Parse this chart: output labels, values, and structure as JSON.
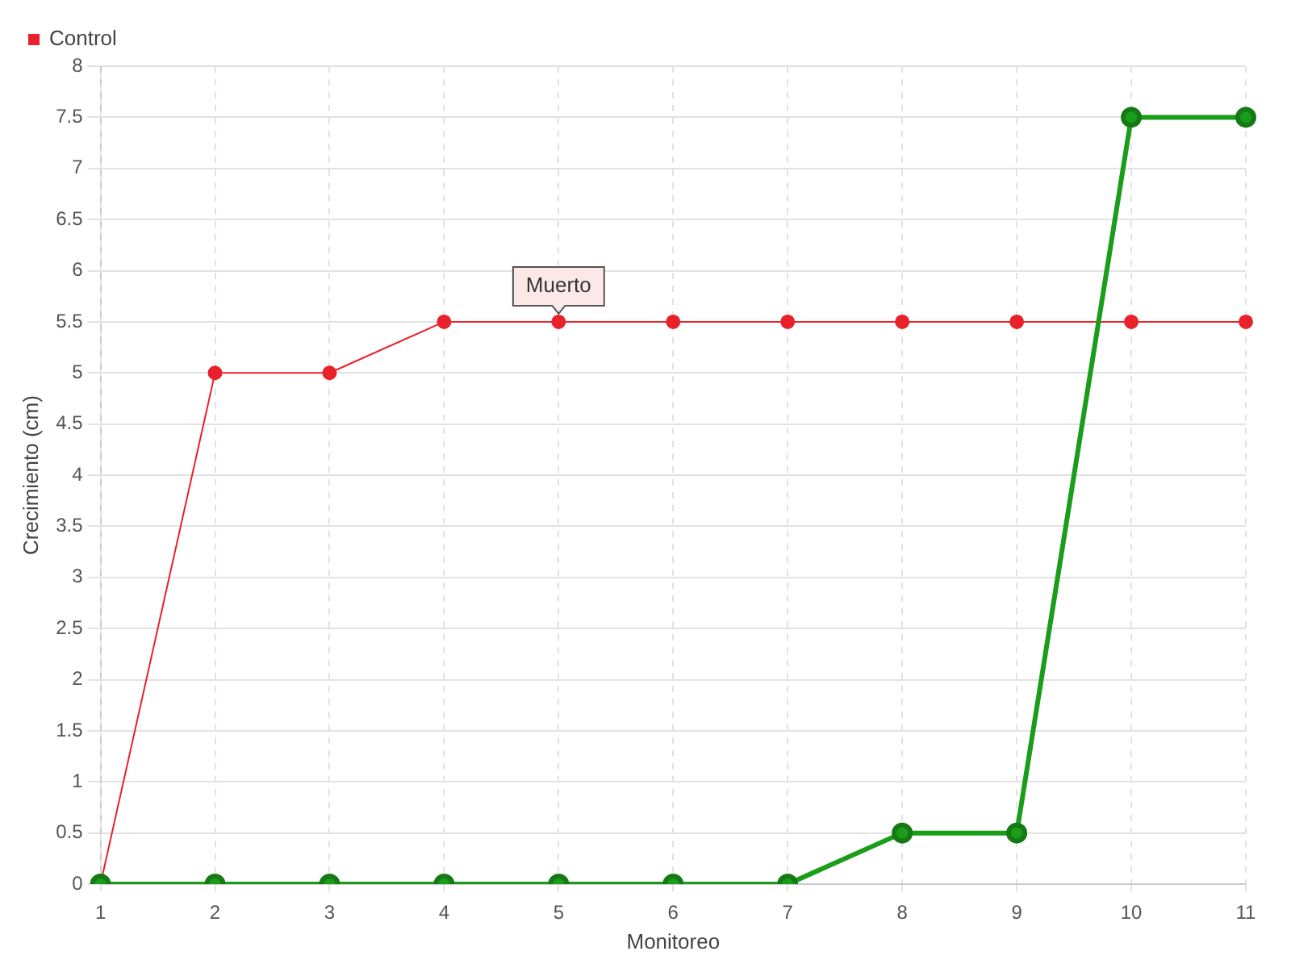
{
  "chart_data": {
    "type": "line",
    "xlabel": "Monitoreo",
    "ylabel": "Crecimiento (cm)",
    "categories": [
      "1",
      "2",
      "3",
      "4",
      "5",
      "6",
      "7",
      "8",
      "9",
      "10",
      "11"
    ],
    "series": [
      {
        "color": "#1a9e1a",
        "values": [
          0,
          0,
          0,
          0,
          0,
          0,
          0,
          0.5,
          0.5,
          7.5,
          7.5
        ]
      },
      {
        "name": "Control",
        "color": "#e8212b",
        "values": [
          0,
          5,
          5,
          5.5,
          5.5,
          5.5,
          5.5,
          5.5,
          5.5,
          5.5,
          5.5
        ]
      }
    ],
    "ylim": [
      0,
      8
    ],
    "yticks": [
      0,
      0.5,
      1,
      1.5,
      2,
      2.5,
      3,
      3.5,
      4,
      4.5,
      5,
      5.5,
      6,
      6.5,
      7,
      7.5,
      8
    ],
    "grid": true,
    "legend": "top left",
    "marker": "circle",
    "line_style": "solid",
    "annotations": [
      {
        "text": "Muerto",
        "x": "5",
        "y": 5.5
      }
    ]
  }
}
